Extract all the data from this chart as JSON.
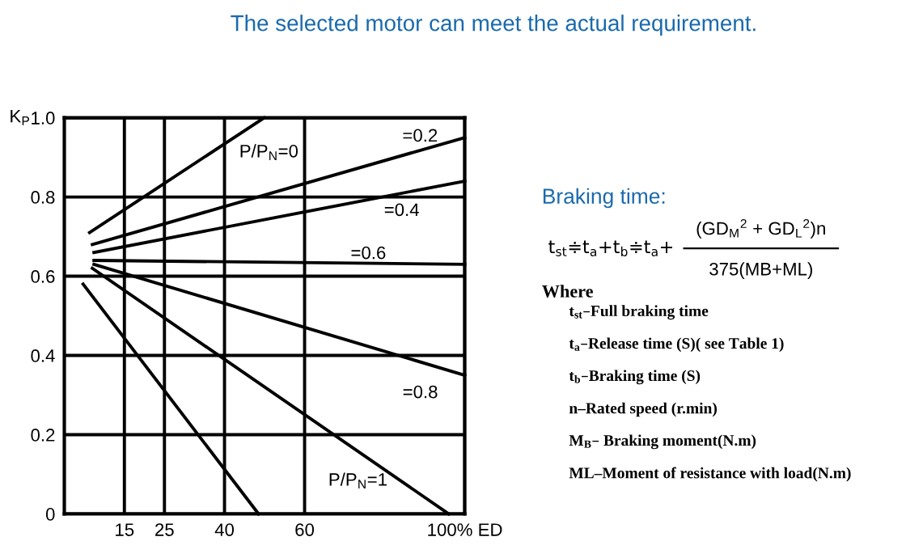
{
  "chart_data": {
    "type": "line",
    "title": "The selected motor can meet the actual requirement.",
    "ylabel": "K$_{P}$",
    "xlim": [
      0,
      100
    ],
    "ylim": [
      0,
      1.0
    ],
    "xticks": [
      15,
      25,
      40,
      60,
      {
        "value": 100,
        "label": "100% ED"
      }
    ],
    "yticks": [
      0,
      0.2,
      0.4,
      0.6,
      0.8,
      {
        "value": 1.0,
        "label": "1.0"
      }
    ],
    "grid": true,
    "marker": "none",
    "line_style": "solid",
    "series": [
      {
        "name": "P/P$_{N}$=0",
        "color": "#000000",
        "x": [
          6.3,
          49.9
        ],
        "values": [
          0.71,
          1.0
        ]
      },
      {
        "name": "=0.2",
        "color": "#000000",
        "x": [
          7.0,
          100
        ],
        "values": [
          0.68,
          0.95
        ]
      },
      {
        "name": "=0.4",
        "color": "#000000",
        "x": [
          7.4,
          100
        ],
        "values": [
          0.66,
          0.84
        ]
      },
      {
        "name": "=0.6",
        "color": "#000000",
        "x": [
          7.4,
          100
        ],
        "values": [
          0.64,
          0.63
        ]
      },
      {
        "name": "=0.8",
        "color": "#000000",
        "x": [
          7.4,
          100
        ],
        "values": [
          0.63,
          0.35
        ]
      },
      {
        "name": "P/P$_{N}$=1",
        "color": "#000000",
        "x": [
          7.0,
          96.0
        ],
        "values": [
          0.62,
          0
        ]
      },
      {
        "color": "#000000",
        "x": [
          4.7,
          48.5
        ],
        "values": [
          0.58,
          0
        ]
      }
    ],
    "annotations": [
      "Braking time:",
      "t$_{st}$≑t$_{a}$+t$_{b}$≑t$_{a}$+",
      "(GD$_{M}$$^{2}$ + GD$_{L}$$^{2}$)n",
      "375(MB+ML)",
      "Where",
      "t$_{st}$–Full braking time",
      "t$_{a}$–Release time (S)( see Table 1)",
      "t$_{b}$–Braking time (S)",
      "n–Rated speed (r.min)",
      "M$_{B}$– Braking moment(N.m)",
      "ML–Moment of resistance with load(N.m)"
    ]
  }
}
